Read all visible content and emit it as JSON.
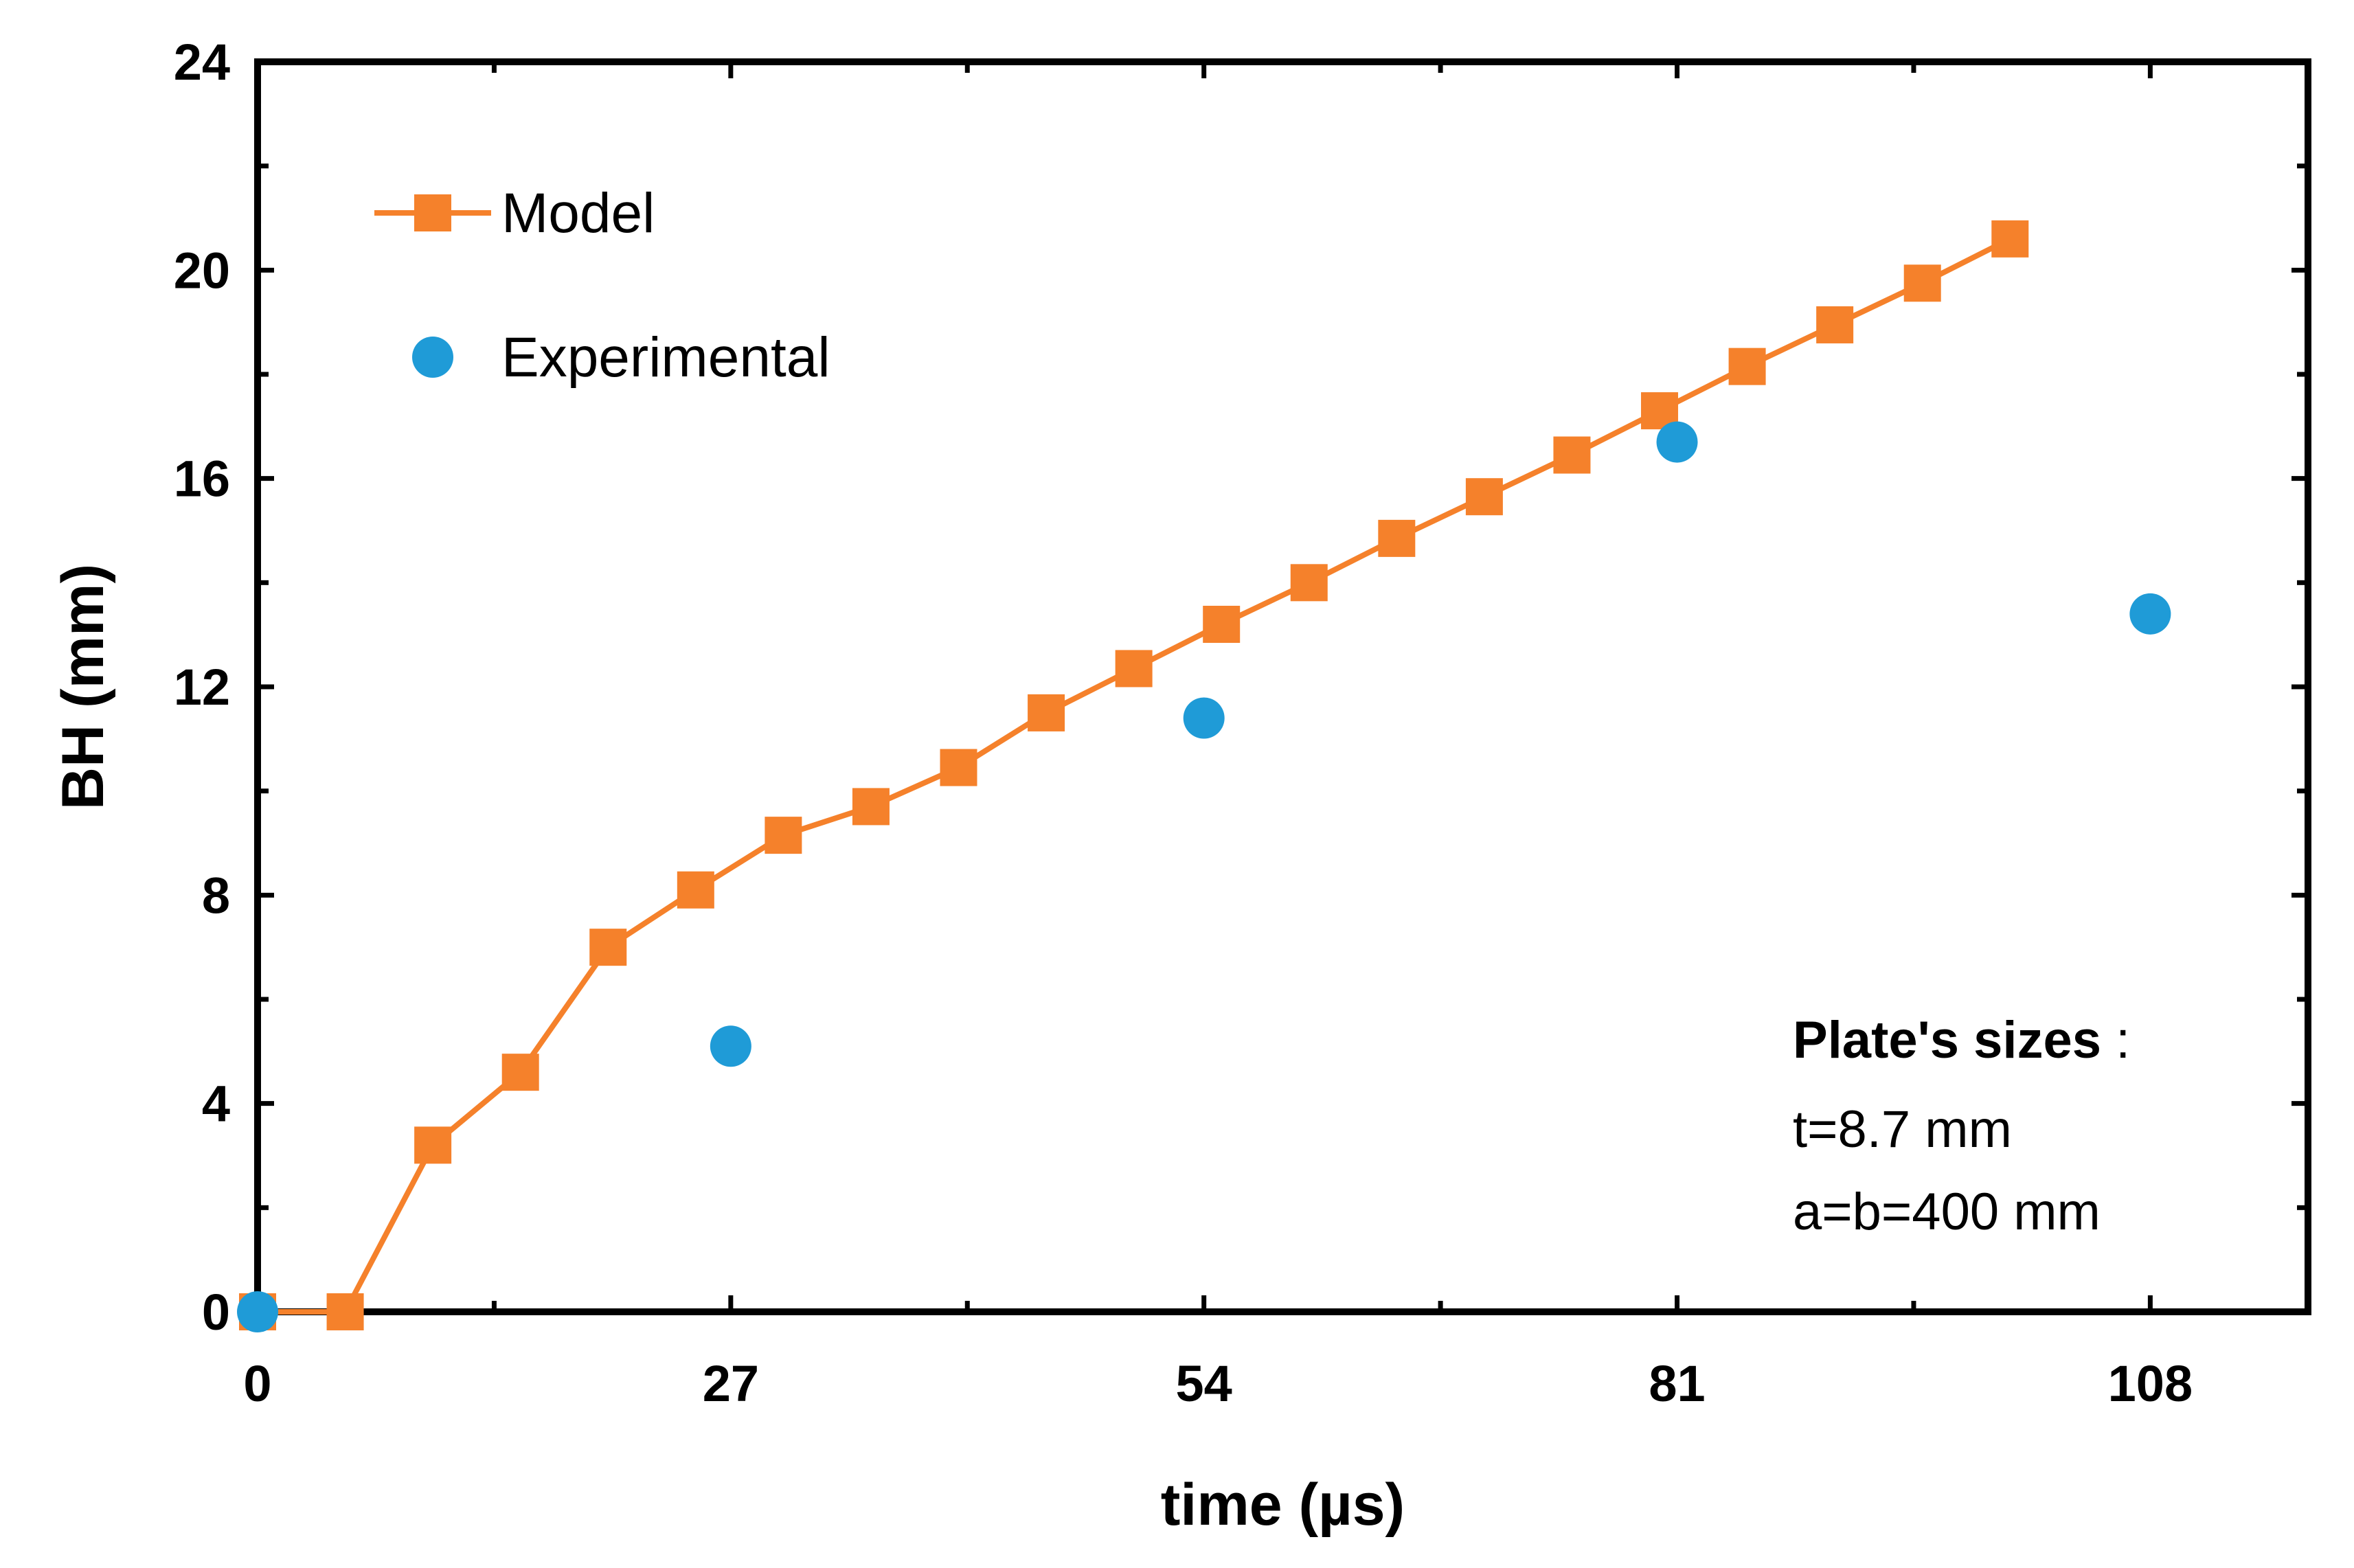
{
  "chart_data": {
    "type": "scatter",
    "title": "",
    "xlabel": "time (µs)",
    "ylabel": "BH (mm)",
    "xlim": [
      0,
      117
    ],
    "ylim": [
      0,
      24
    ],
    "xticks": [
      0,
      27,
      54,
      81,
      108
    ],
    "yticks": [
      0,
      4,
      8,
      12,
      16,
      20,
      24
    ],
    "grid": false,
    "legend_position": "top-left",
    "series": [
      {
        "name": "Model",
        "kind": "line+square",
        "color": "#F5812B",
        "x": [
          0,
          5,
          10,
          15,
          20,
          25,
          30,
          35,
          40,
          45,
          50,
          55,
          60,
          65,
          70,
          75,
          80,
          85,
          90,
          95,
          100
        ],
        "y": [
          0,
          0,
          3.2,
          4.6,
          7.0,
          8.1,
          9.15,
          9.7,
          10.45,
          11.5,
          12.35,
          13.2,
          14.0,
          14.85,
          15.65,
          16.45,
          17.3,
          18.15,
          18.95,
          19.75,
          20.6
        ]
      },
      {
        "name": "Experimental",
        "kind": "circle",
        "color": "#1F9BD7",
        "x": [
          0,
          27,
          54,
          81,
          108
        ],
        "y": [
          0,
          5.1,
          11.4,
          16.7,
          13.4
        ]
      }
    ],
    "annotation": {
      "title": "Plate's sizes",
      "title_suffix": " :",
      "lines": [
        "t=8.7 mm",
        "a=b=400 mm"
      ]
    }
  }
}
